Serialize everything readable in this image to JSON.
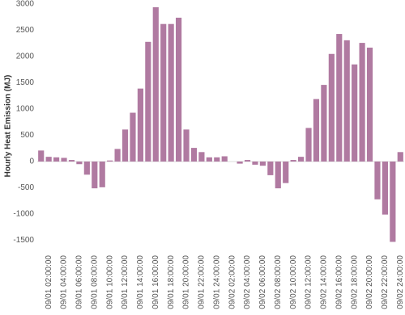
{
  "chart_data": {
    "type": "bar",
    "y_label": "Hourly Heat Emission (MJ)",
    "categories": [
      null,
      "09/01 02:00:00",
      null,
      "09/01 04:00:00",
      null,
      "09/01 06:00:00",
      null,
      "09/01 08:00:00",
      null,
      "09/01 10:00:00",
      null,
      "09/01 12:00:00",
      null,
      "09/01 14:00:00",
      null,
      "09/01 16:00:00",
      null,
      "09/01 18:00:00",
      null,
      "09/01 20:00:00",
      null,
      "09/01 22:00:00",
      null,
      "09/01 24:00:00",
      null,
      "09/02 02:00:00",
      null,
      "09/02 04:00:00",
      null,
      "09/02 06:00:00",
      null,
      "09/02 08:00:00",
      null,
      "09/02 10:00:00",
      null,
      "09/02 12:00:00",
      null,
      "09/02 14:00:00",
      null,
      "09/02 16:00:00",
      null,
      "09/02 18:00:00",
      null,
      "09/02 20:00:00",
      null,
      "09/02 22:00:00",
      null,
      "09/02 24:00:00"
    ],
    "values": [
      210,
      90,
      80,
      70,
      30,
      -50,
      -250,
      -510,
      -490,
      20,
      240,
      610,
      930,
      1390,
      2280,
      2940,
      2620,
      2620,
      2740,
      610,
      260,
      180,
      80,
      80,
      100,
      0,
      -40,
      30,
      -60,
      -80,
      -260,
      -510,
      -410,
      30,
      90,
      640,
      1190,
      1460,
      2050,
      2430,
      2310,
      1850,
      2260,
      2170,
      -720,
      -1010,
      -1530,
      180
    ],
    "color": "#b07aa1",
    "ylim": [
      -1700,
      3050
    ],
    "yticks": [
      -1500,
      -1000,
      -500,
      0,
      500,
      1000,
      1500,
      2000,
      2500,
      3000
    ]
  }
}
